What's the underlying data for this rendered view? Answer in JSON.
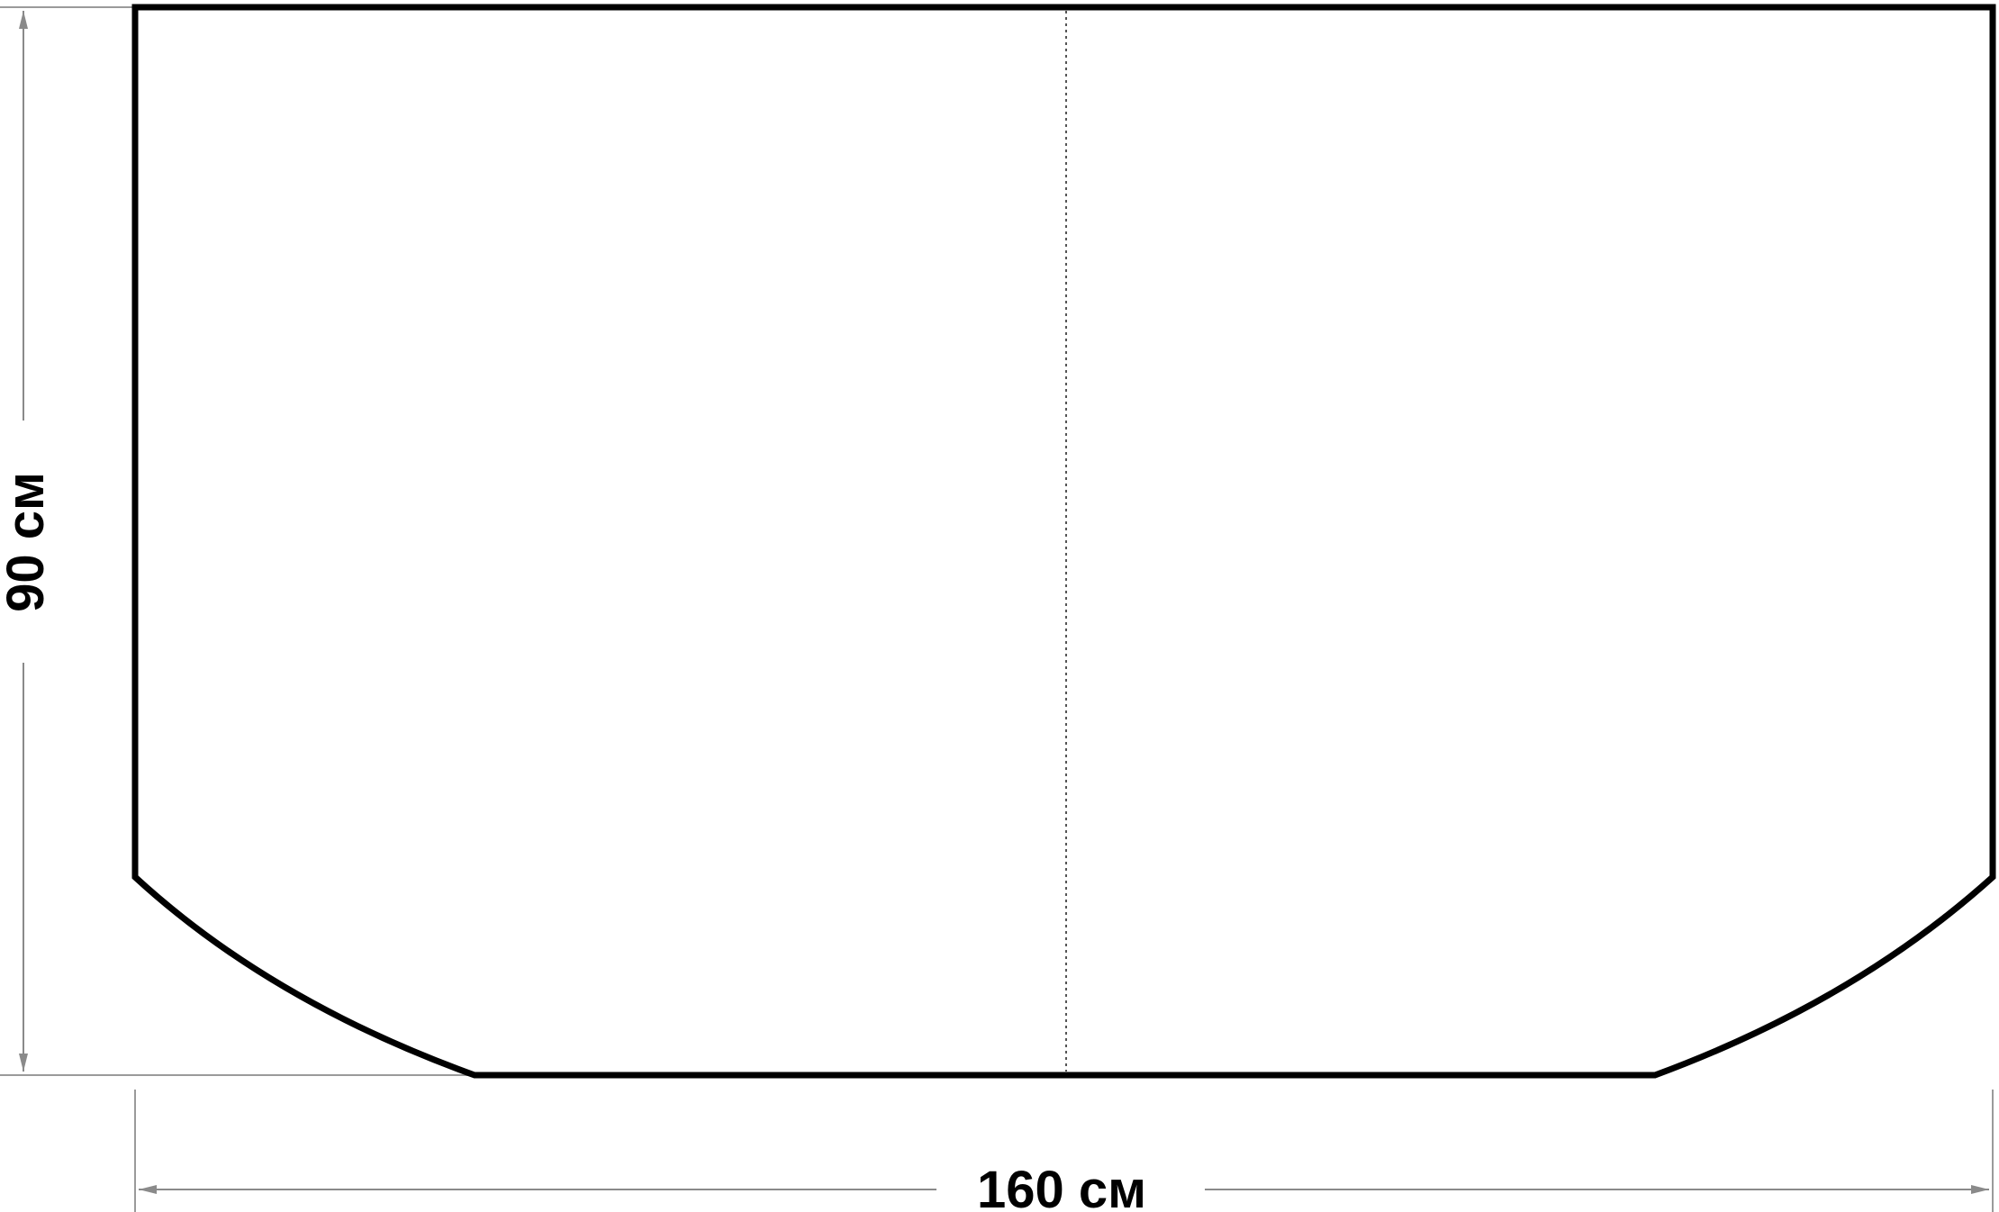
{
  "dimensions": {
    "height_label": "90 см",
    "width_label": "160 см"
  },
  "colors": {
    "outline": "#000000",
    "dimension_line": "#8a8a8a",
    "fold_line": "#555555"
  }
}
